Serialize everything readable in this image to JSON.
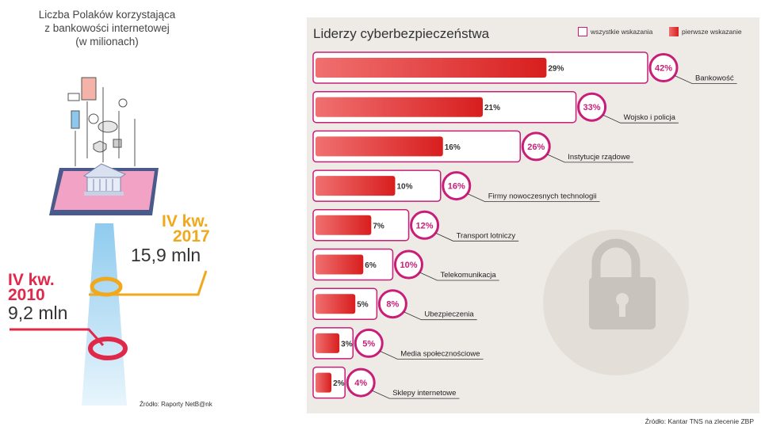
{
  "left_panel": {
    "title_lines": [
      "Liczba Polaków korzystająca",
      "z bankowości internetowej",
      "(w milionach)"
    ],
    "q2017": {
      "label_line1": "IV kw.",
      "label_line2": "2017",
      "value": "15,9 mln"
    },
    "q2010": {
      "label_line1": "IV kw.",
      "label_line2": "2010",
      "value": "9,2 mln"
    },
    "source": "Źródło: Raporty NetB@nk",
    "colors": {
      "y2017": "#f0a81c",
      "y2010": "#e0284a",
      "beam": "#a9d8f2"
    }
  },
  "chart_data": {
    "type": "bar",
    "title": "Liderzy cyberbezpieczeństwa",
    "legend": [
      "wszystkie wskazania",
      "pierwsze wskazanie"
    ],
    "categories": [
      "Bankowość",
      "Wojsko i policja",
      "Instytucje rządowe",
      "Firmy nowoczesnych technologii",
      "Transport lotniczy",
      "Telekomunikacja",
      "Ubezpieczenia",
      "Media społecznościowe",
      "Sklepy internetowe"
    ],
    "series": [
      {
        "name": "wszystkie wskazania",
        "values": [
          42,
          33,
          26,
          16,
          12,
          10,
          8,
          5,
          4
        ],
        "labels": [
          "42%",
          "33%",
          "26%",
          "16%",
          "12%",
          "10%",
          "8%",
          "5%",
          "4%"
        ]
      },
      {
        "name": "pierwsze wskazanie",
        "values": [
          29,
          21,
          16,
          10,
          7,
          6,
          5,
          3,
          2
        ],
        "labels": [
          "29%",
          "21%",
          "16%",
          "10%",
          "7%",
          "6%",
          "5%",
          "3%",
          "2%"
        ]
      }
    ],
    "unit": "%",
    "ylim": [
      0,
      42
    ],
    "colors": {
      "outline": "#c81e78",
      "fill_start": "#f07070",
      "fill_end": "#d81e1e",
      "lock": "#c9c3bd"
    }
  },
  "source_right": "Źródło: Kantar TNS na zlecenie ZBP"
}
